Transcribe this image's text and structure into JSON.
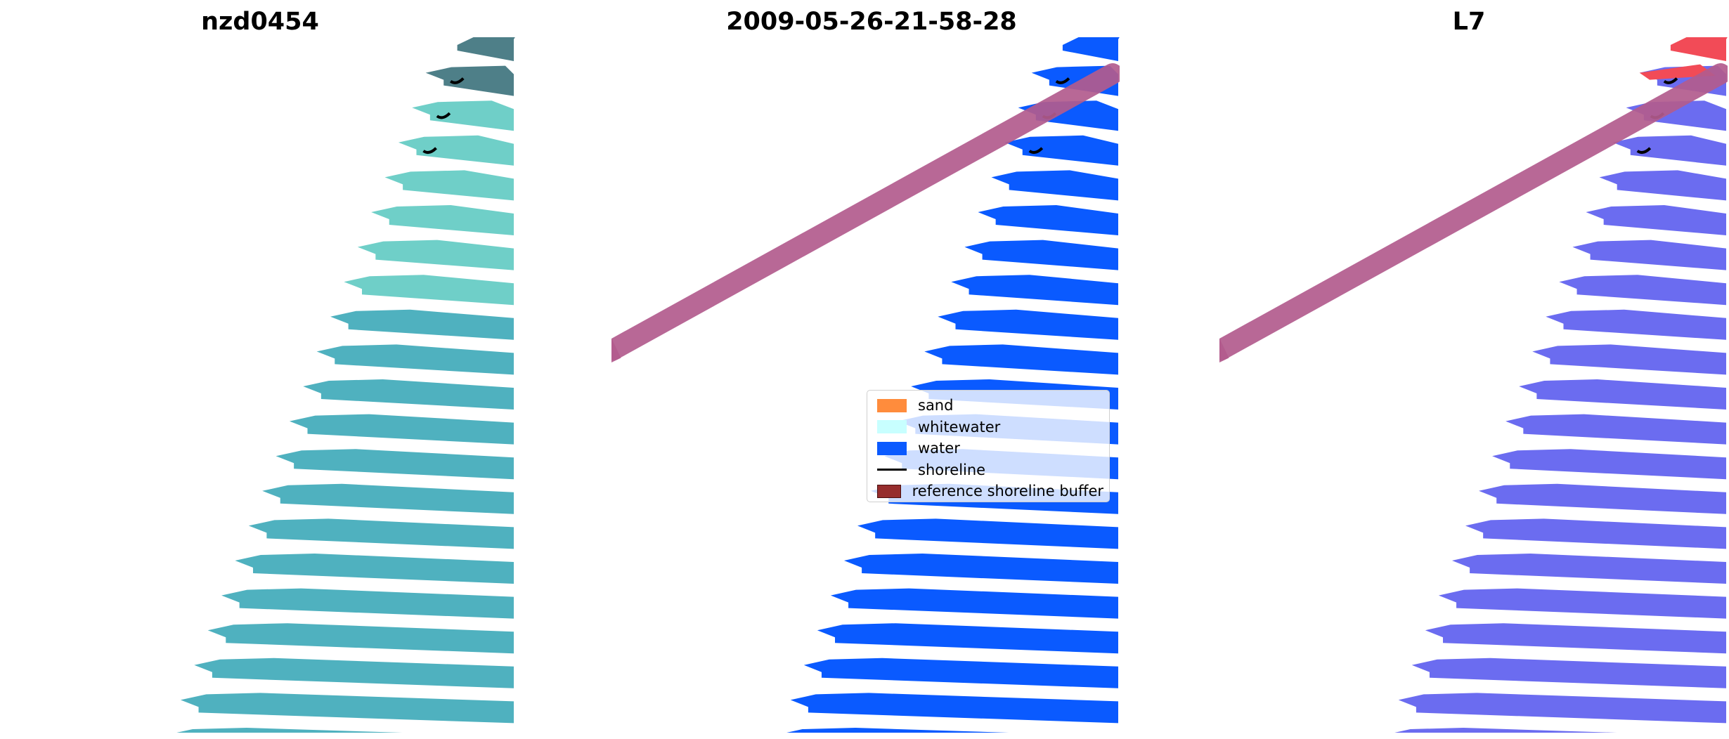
{
  "panels": [
    {
      "title": "nzd0454"
    },
    {
      "title": "2009-05-26-21-58-28"
    },
    {
      "title": "L7"
    }
  ],
  "legend": {
    "items": [
      {
        "label": "sand",
        "color": "#ff8c3c",
        "kind": "patch"
      },
      {
        "label": "whitewater",
        "color": "#c8ffff",
        "kind": "patch"
      },
      {
        "label": "water",
        "color": "#0a5aff",
        "kind": "patch"
      },
      {
        "label": "shoreline",
        "color": "#000000",
        "kind": "line"
      },
      {
        "label": "reference shoreline buffer",
        "color": "#962d2d",
        "kind": "patch",
        "edge": "#4a1010"
      }
    ]
  },
  "colors": {
    "rgb_image_water": "#4fb1bf",
    "rgb_image_light": "#6fcfc8",
    "rgb_image_dark": "#4e7f88",
    "classified_water": "#0a5aff",
    "ndwi_water": "#6b6cf0",
    "ndwi_land": "#f24b57",
    "buffer": "#b35c8e"
  }
}
